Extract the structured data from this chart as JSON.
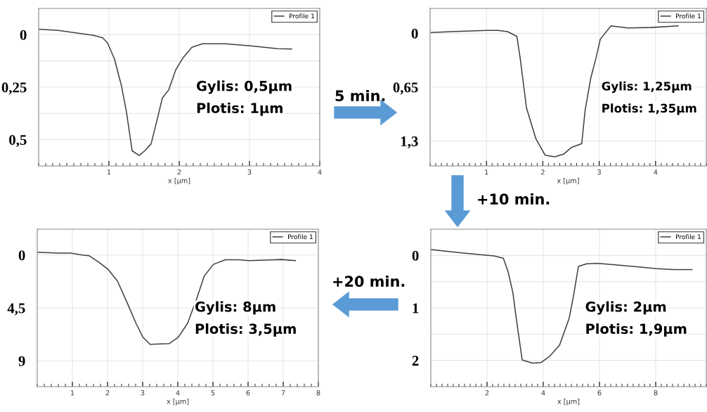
{
  "chart_data": [
    {
      "type": "line",
      "xlabel": "x [µm]",
      "xlim": [
        0,
        4
      ],
      "xticks": [
        1,
        2,
        3,
        4
      ],
      "ylim": [
        0.625,
        -0.125
      ],
      "yticks": [
        0,
        {
          "value": 0.125,
          "label": null
        },
        {
          "value": 0.25,
          "label": "0,25"
        },
        {
          "value": 0.375,
          "label": null
        },
        {
          "value": 0.5,
          "label": "0,5"
        }
      ],
      "grid": true,
      "legend": "top right",
      "annotations": [
        "Gylis: 0,5µm",
        "Plotis: 1µm",
        "5 min."
      ],
      "series": [
        {
          "name": "Profile 1",
          "color": "#404040",
          "x": [
            0,
            0.28,
            0.78,
            0.91,
            0.98,
            1.08,
            1.18,
            1.25,
            1.33,
            1.43,
            1.51,
            1.6,
            1.68,
            1.76,
            1.85,
            1.95,
            2.05,
            2.18,
            2.33,
            2.65,
            3.02,
            3.4,
            3.6
          ],
          "values": [
            -0.026,
            -0.02,
            0.003,
            0.015,
            0.039,
            0.117,
            0.246,
            0.369,
            0.553,
            0.575,
            0.553,
            0.52,
            0.413,
            0.302,
            0.263,
            0.168,
            0.112,
            0.06,
            0.043,
            0.043,
            0.053,
            0.067,
            0.068
          ]
        }
      ]
    },
    {
      "type": "line",
      "xlabel": "x [µm]",
      "xlim": [
        0,
        4.9
      ],
      "xticks": [
        1,
        2,
        3,
        4
      ],
      "ylim": [
        1.6,
        -0.3
      ],
      "yticks": [
        0,
        {
          "value": 0.65,
          "label": "0,65"
        },
        {
          "value": 1.3,
          "label": "1,3"
        }
      ],
      "grid": true,
      "legend": "top right",
      "annotations": [
        "Gylis: 1,25µm",
        "Plotis: 1,35µm",
        "+10 min."
      ],
      "series": [
        {
          "name": "Profile 1",
          "color": "#404040",
          "x": [
            0.02,
            0.375,
            1.0,
            1.21,
            1.375,
            1.54,
            1.6,
            1.71,
            1.875,
            2.04,
            2.21,
            2.375,
            2.5,
            2.69,
            2.75,
            2.85,
            2.94,
            3.02,
            3.21,
            3.5,
            3.92,
            4.4
          ],
          "values": [
            -0.01,
            -0.02,
            -0.034,
            -0.034,
            -0.02,
            0.037,
            0.31,
            0.9,
            1.27,
            1.47,
            1.49,
            1.455,
            1.38,
            1.33,
            0.93,
            0.54,
            0.31,
            0.07,
            -0.09,
            -0.065,
            -0.07,
            -0.09
          ]
        }
      ]
    },
    {
      "type": "line",
      "xlabel": "x [µm]",
      "xlim": [
        0,
        8
      ],
      "xticks": [
        1,
        2,
        3,
        4,
        5,
        6,
        7,
        8
      ],
      "ylim": [
        11.2,
        -2.2
      ],
      "yticks": [
        0,
        {
          "value": 4.5,
          "label": "4,5"
        },
        9
      ],
      "grid": true,
      "legend": "top right",
      "annotations": [
        "Gylis: 8µm",
        "Plotis: 3,5µm"
      ],
      "series": [
        {
          "name": "Profile 1",
          "color": "#404040",
          "x": [
            0,
            0.61,
            0.95,
            1.28,
            1.48,
            1.75,
            2.01,
            2.28,
            2.55,
            2.81,
            3.01,
            3.21,
            3.75,
            4.01,
            4.28,
            4.55,
            4.75,
            5.01,
            5.35,
            5.75,
            6.01,
            6.61,
            6.95,
            7.35
          ],
          "values": [
            -0.24,
            -0.16,
            -0.16,
            0,
            0.06,
            0.6,
            1.2,
            2.2,
            4.0,
            5.8,
            7.0,
            7.6,
            7.54,
            7.0,
            5.8,
            3.6,
            1.8,
            0.8,
            0.4,
            0.4,
            0.48,
            0.42,
            0.38,
            0.48
          ]
        }
      ]
    },
    {
      "type": "line",
      "xlabel": "x [µm]",
      "xlim": [
        0,
        9.8
      ],
      "xticks": [
        2,
        4,
        6,
        8
      ],
      "ylim": [
        2.5,
        -0.5
      ],
      "yticks": [
        0,
        {
          "value": 0.5,
          "label": null
        },
        1,
        {
          "value": 1.5,
          "label": null
        },
        2
      ],
      "grid": true,
      "legend": "top right",
      "annotations": [
        "Gylis: 2µm",
        "Plotis: 1,9µm",
        "+20 min."
      ],
      "series": [
        {
          "name": "Profile 1",
          "color": "#404040",
          "x": [
            0.02,
            1.17,
            2.25,
            2.58,
            2.75,
            2.92,
            3.04,
            3.25,
            3.62,
            3.92,
            4.21,
            4.58,
            4.92,
            5.08,
            5.25,
            5.54,
            5.92,
            6.58,
            7.42,
            8.0,
            8.67,
            9.29
          ],
          "values": [
            -0.11,
            -0.044,
            0.009,
            0.053,
            0.31,
            0.71,
            1.2,
            1.99,
            2.05,
            2.04,
            1.93,
            1.71,
            1.2,
            0.76,
            0.21,
            0.16,
            0.15,
            0.18,
            0.22,
            0.25,
            0.27,
            0.27
          ]
        }
      ]
    }
  ]
}
